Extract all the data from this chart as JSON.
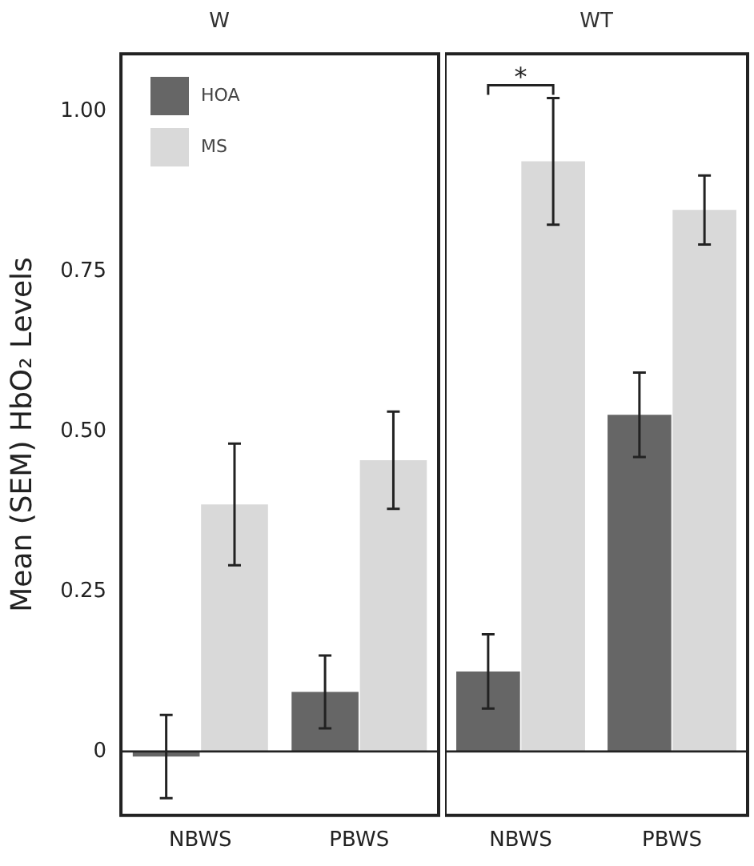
{
  "chart_data": [
    {
      "type": "bar",
      "title": "W",
      "ylabel": "Mean (SEM) HbO₂ Levels",
      "categories": [
        "NBWS",
        "PBWS"
      ],
      "series": [
        {
          "name": "HOA",
          "color": "#666666",
          "values": [
            -0.008,
            0.093
          ],
          "errors": [
            0.065,
            0.057
          ]
        },
        {
          "name": "MS",
          "color": "#d9d9d9",
          "values": [
            0.386,
            0.455
          ],
          "errors": [
            0.095,
            0.076
          ]
        }
      ],
      "ylim": [
        -0.1,
        1.09
      ],
      "yticks": [
        0,
        0.25,
        {
          "value": 0.5,
          "label": "0.50"
        },
        0.75,
        {
          "value": 1,
          "label": "1.00"
        }
      ],
      "ref_lines": [
        {
          "axis": "y",
          "value": 0
        }
      ],
      "grid": false,
      "legend": "top left"
    },
    {
      "type": "bar",
      "title": "WT",
      "categories": [
        "NBWS",
        "PBWS"
      ],
      "series": [
        {
          "color": "#666666",
          "values": [
            0.125,
            0.526
          ],
          "errors": [
            0.058,
            0.066
          ]
        },
        {
          "color": "#d9d9d9",
          "values": [
            0.922,
            0.846
          ],
          "errors": [
            0.099,
            0.054
          ]
        }
      ],
      "ylim": [
        -0.1,
        1.09
      ],
      "ref_lines": [
        {
          "axis": "y",
          "value": 0
        }
      ],
      "annotations": [
        "*"
      ],
      "grid": false,
      "tick_labels": "x"
    }
  ]
}
